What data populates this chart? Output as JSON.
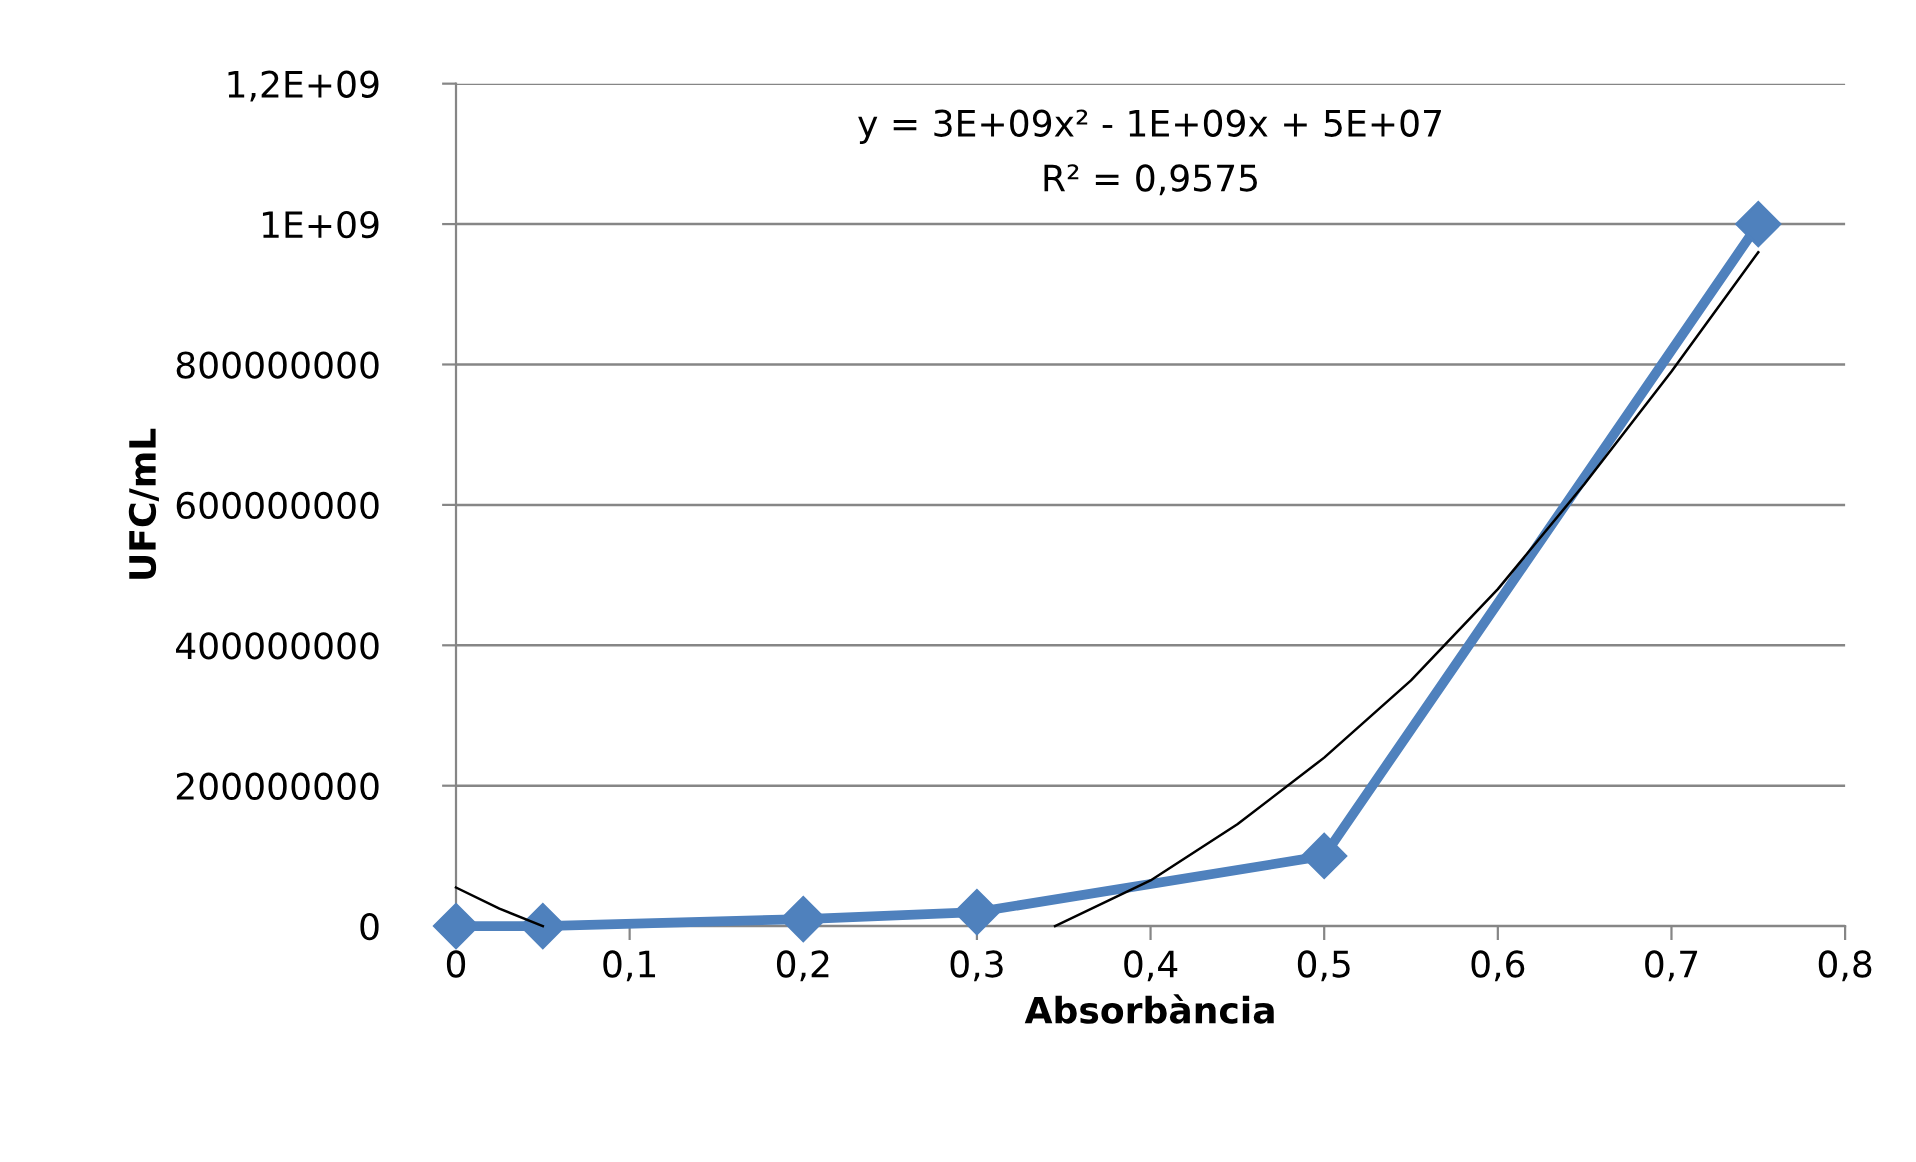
{
  "chart_data": {
    "type": "line",
    "xlabel": "Absorbància",
    "ylabel": "UFC/mL",
    "series": [
      {
        "color": "#4f81bd",
        "marker": "diamond",
        "x": [
          0,
          0.05,
          0.2,
          0.3,
          0.5,
          0.75
        ],
        "values": [
          0,
          0,
          10000000,
          20000000,
          100000000,
          1000000000
        ]
      },
      {
        "type": "line",
        "color": "#000000",
        "marker": "none",
        "x": [
          0,
          0.025,
          0.05,
          0.2,
          0.345,
          0.4,
          0.45,
          0.5,
          0.55,
          0.6,
          0.65,
          0.7,
          0.75
        ],
        "values": [
          55000000,
          25000000,
          0,
          null,
          0,
          65000000,
          145000000,
          240000000,
          350000000,
          480000000,
          630000000,
          790000000,
          960000000
        ]
      }
    ],
    "xlim": [
      0,
      0.8
    ],
    "xticks": [
      0,
      {
        "value": 0.1,
        "label": "0,1"
      },
      {
        "value": 0.2,
        "label": "0,2"
      },
      {
        "value": 0.3,
        "label": "0,3"
      },
      {
        "value": 0.4,
        "label": "0,4"
      },
      {
        "value": 0.5,
        "label": "0,5"
      },
      {
        "value": 0.6,
        "label": "0,6"
      },
      {
        "value": 0.7,
        "label": "0,7"
      },
      {
        "value": 0.8,
        "label": "0,8"
      }
    ],
    "ylim": [
      0,
      1200000000
    ],
    "yticks": [
      0,
      200000000,
      400000000,
      600000000,
      800000000,
      {
        "value": 1000000000,
        "label": "1E+09"
      },
      {
        "value": 1200000000,
        "label": "1,2E+09"
      }
    ],
    "grid": "y",
    "legend": false,
    "annotations": [
      "y = 3E+09x² - 1E+09x + 5E+07",
      "R² = 0,9575"
    ]
  }
}
